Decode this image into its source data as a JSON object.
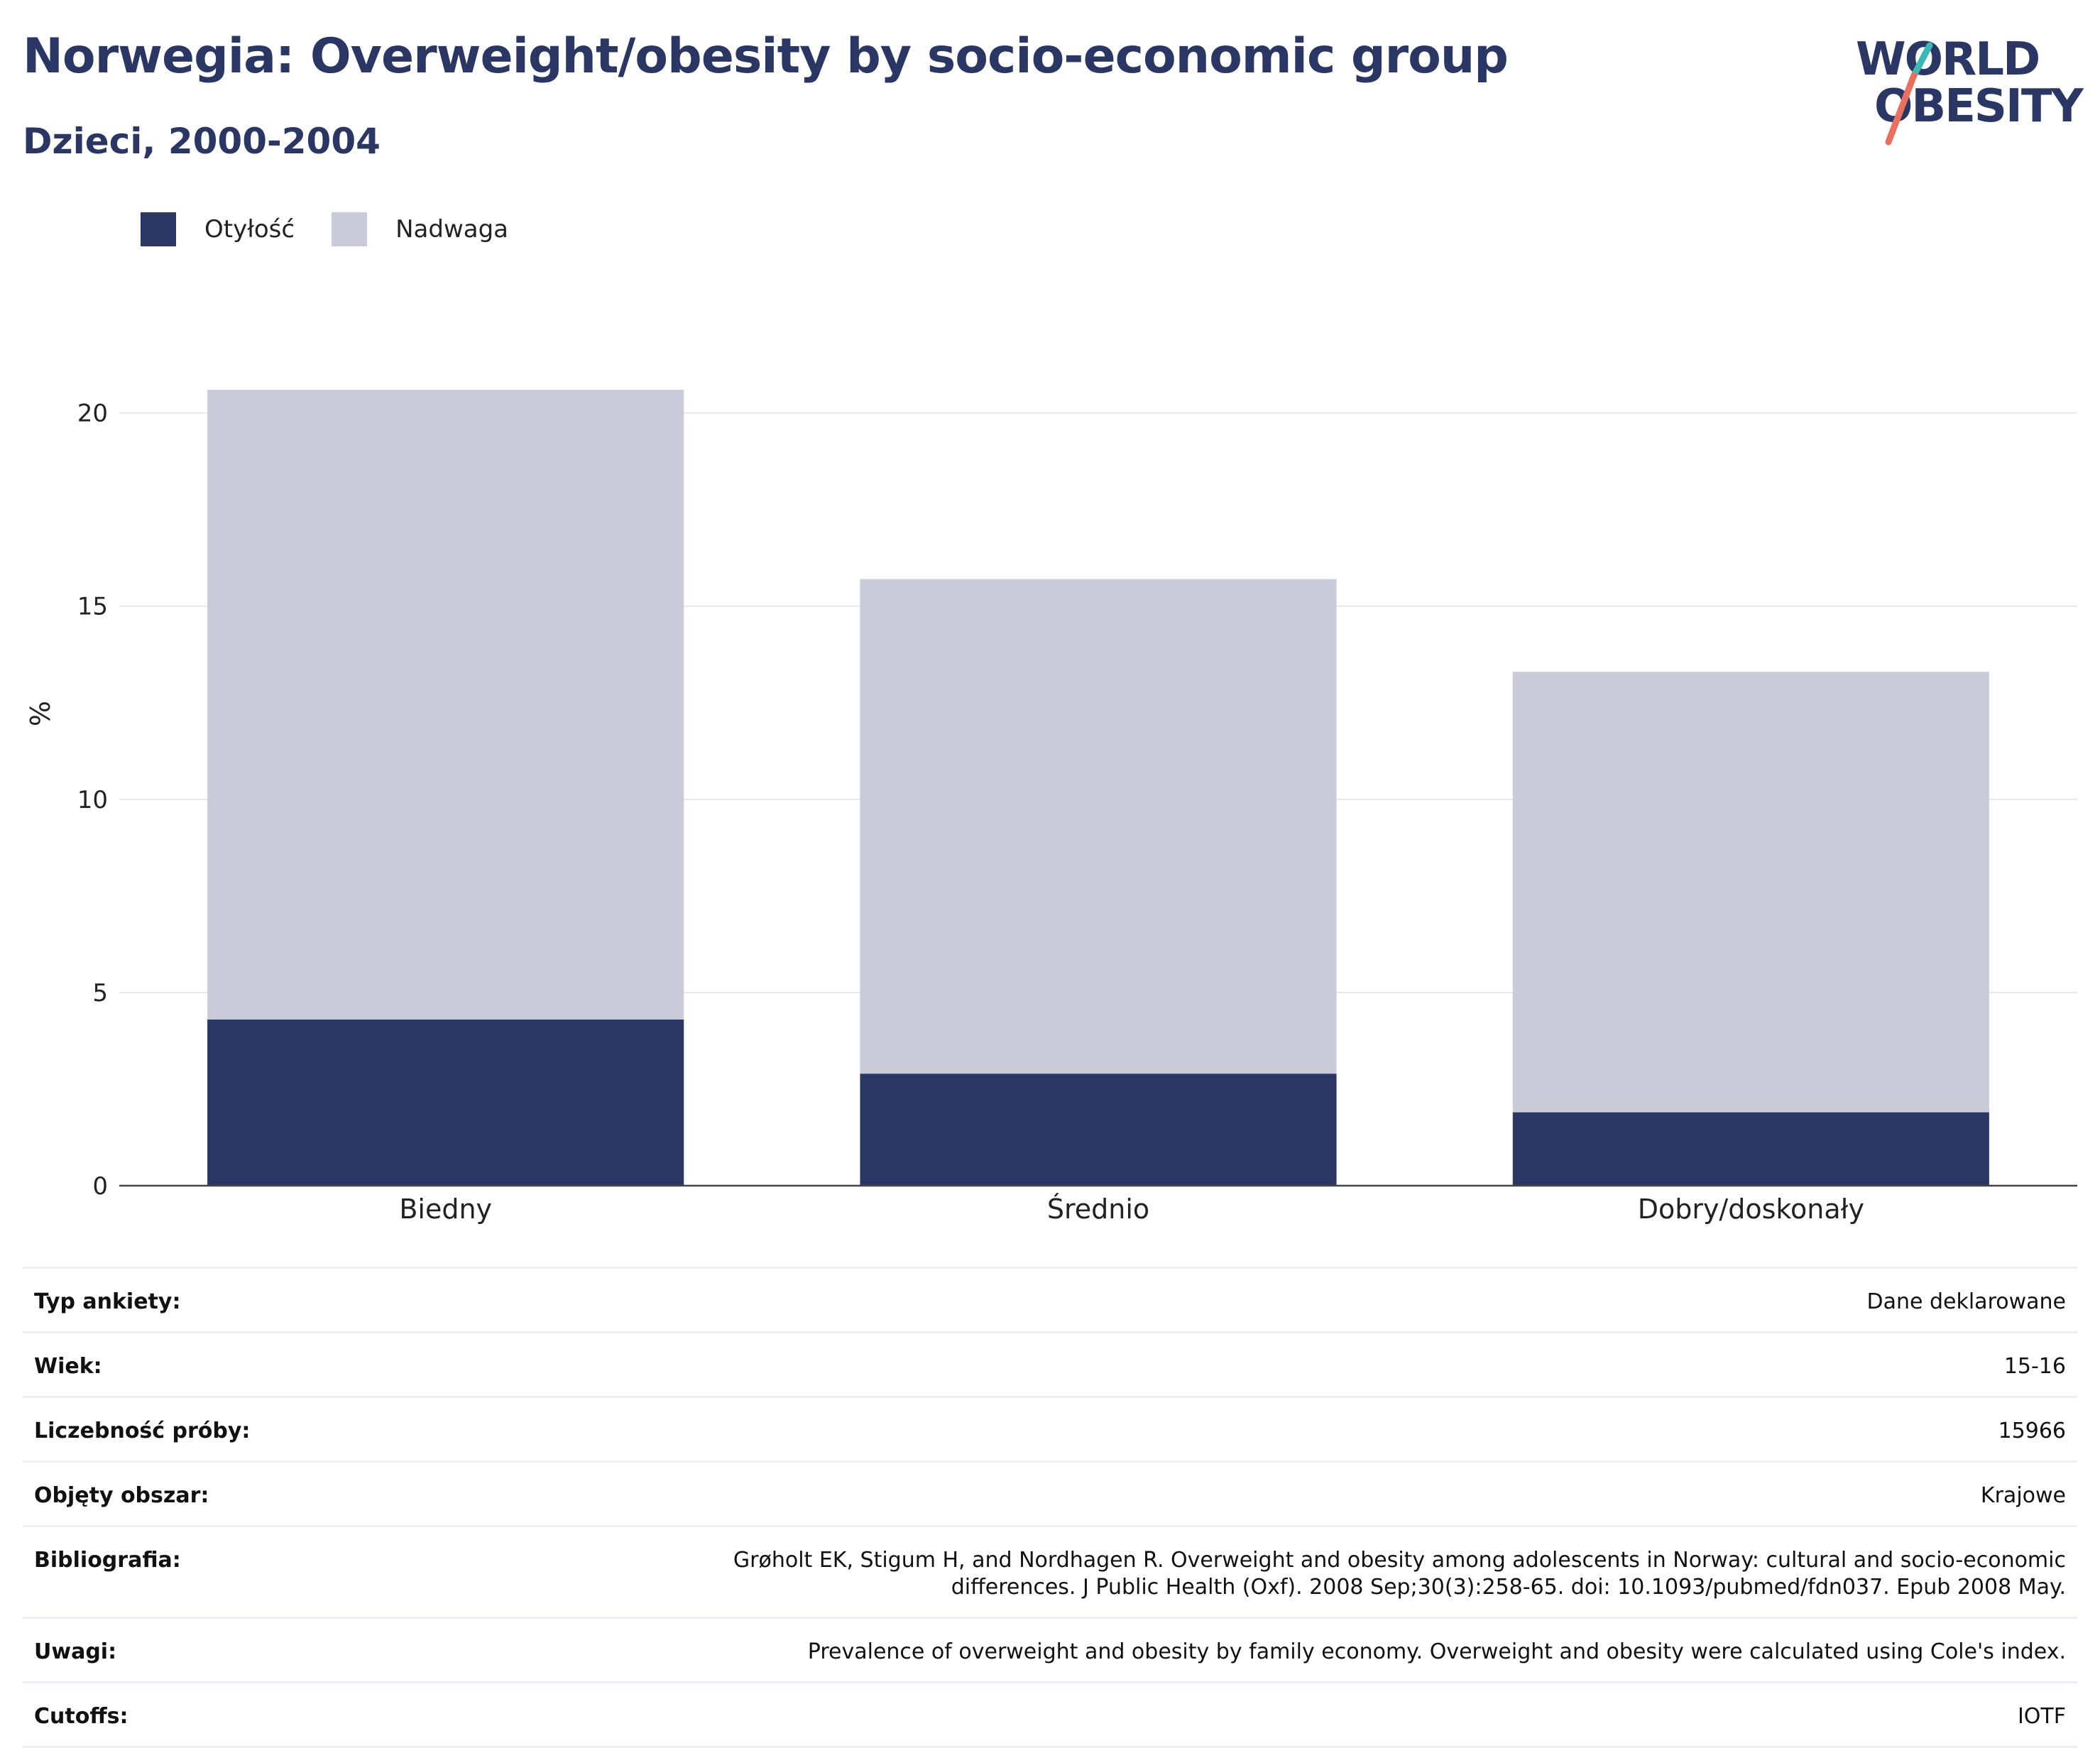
{
  "header": {
    "title": "Norwegia: Overweight/obesity by socio-economic group",
    "subtitle": "Dzieci, 2000-2004"
  },
  "logo": {
    "line1": "WORLD",
    "line2": "OBESITY",
    "colors": [
      "#2a3663",
      "#3ab8b4",
      "#e8705f"
    ]
  },
  "legend": [
    {
      "label": "Otyłość",
      "color": "#2a3663"
    },
    {
      "label": "Nadwaga",
      "color": "#c9ccd8"
    }
  ],
  "chart_data": {
    "type": "bar",
    "stacked": true,
    "categories": [
      "Biedny",
      "Średnio",
      "Dobry/doskonały"
    ],
    "series": [
      {
        "name": "Otyłość",
        "values": [
          4.3,
          2.9,
          1.9
        ],
        "color": "#2a3663"
      },
      {
        "name": "Nadwaga",
        "values": [
          16.3,
          12.8,
          11.4
        ],
        "color": "#c9ccd8"
      }
    ],
    "ylabel": "%",
    "ylim": [
      0,
      21.5
    ],
    "yticks": [
      0,
      5,
      10,
      15,
      20
    ],
    "grid": true,
    "legend_position": "top-left"
  },
  "meta": [
    {
      "label": "Typ ankiety:",
      "value": "Dane deklarowane"
    },
    {
      "label": "Wiek:",
      "value": "15-16"
    },
    {
      "label": "Liczebność próby:",
      "value": "15966"
    },
    {
      "label": "Objęty obszar:",
      "value": "Krajowe"
    },
    {
      "label": "Bibliografia:",
      "value": "Grøholt EK, Stigum H, and Nordhagen R. Overweight and obesity among adolescents in Norway: cultural and socio-economic differences. J Public Health (Oxf). 2008 Sep;30(3):258-65. doi: 10.1093/pubmed/fdn037. Epub 2008 May."
    },
    {
      "label": "Uwagi:",
      "value": "Prevalence of overweight and obesity by family economy. Overweight and obesity were calculated using Cole's index."
    },
    {
      "label": "Cutoffs:",
      "value": "IOTF"
    }
  ]
}
